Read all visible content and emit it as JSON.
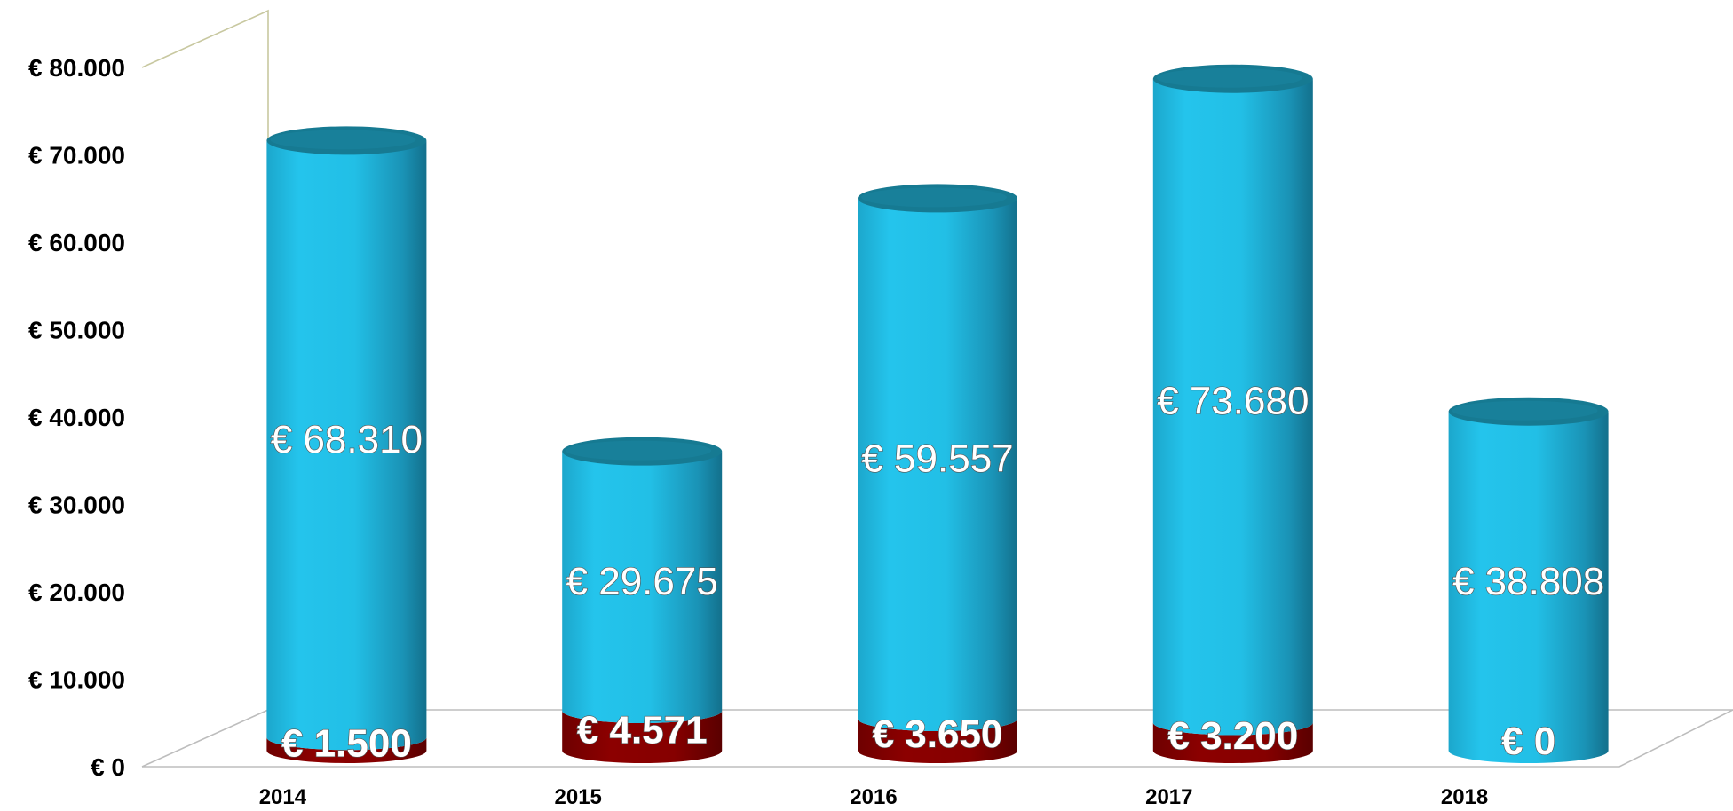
{
  "chart_data": {
    "type": "bar",
    "categories": [
      "2014",
      "2015",
      "2016",
      "2017",
      "2018"
    ],
    "series": [
      {
        "values": [
          1500,
          4571,
          3650,
          3200,
          0
        ],
        "labels": [
          "€ 1.500",
          "€ 4.571",
          "€ 3.650",
          "€ 3.200",
          "€ 0"
        ]
      },
      {
        "values": [
          68310,
          29675,
          59557,
          73680,
          38808
        ],
        "labels": [
          "€ 68.310",
          "€ 29.675",
          "€ 59.557",
          "€ 73.680",
          "€ 38.808"
        ]
      }
    ],
    "ylim": [
      0,
      80000
    ],
    "yticks": [
      0,
      10000,
      20000,
      30000,
      40000,
      50000,
      60000,
      70000,
      80000
    ],
    "ytick_labels": [
      "€ 0",
      "€ 10.000",
      "€ 20.000",
      "€ 30.000",
      "€ 40.000",
      "€ 50.000",
      "€ 60.000",
      "€ 70.000",
      "€ 80.000"
    ],
    "style": "3d-cylinder",
    "grid": false,
    "legend": "none",
    "colors": {
      "series_1": "#8b0000",
      "series_2": "#22c1ea",
      "series_2_top": "#167a92",
      "axis": "#bdbdbd",
      "back_wall": "#c8c8a0"
    }
  }
}
